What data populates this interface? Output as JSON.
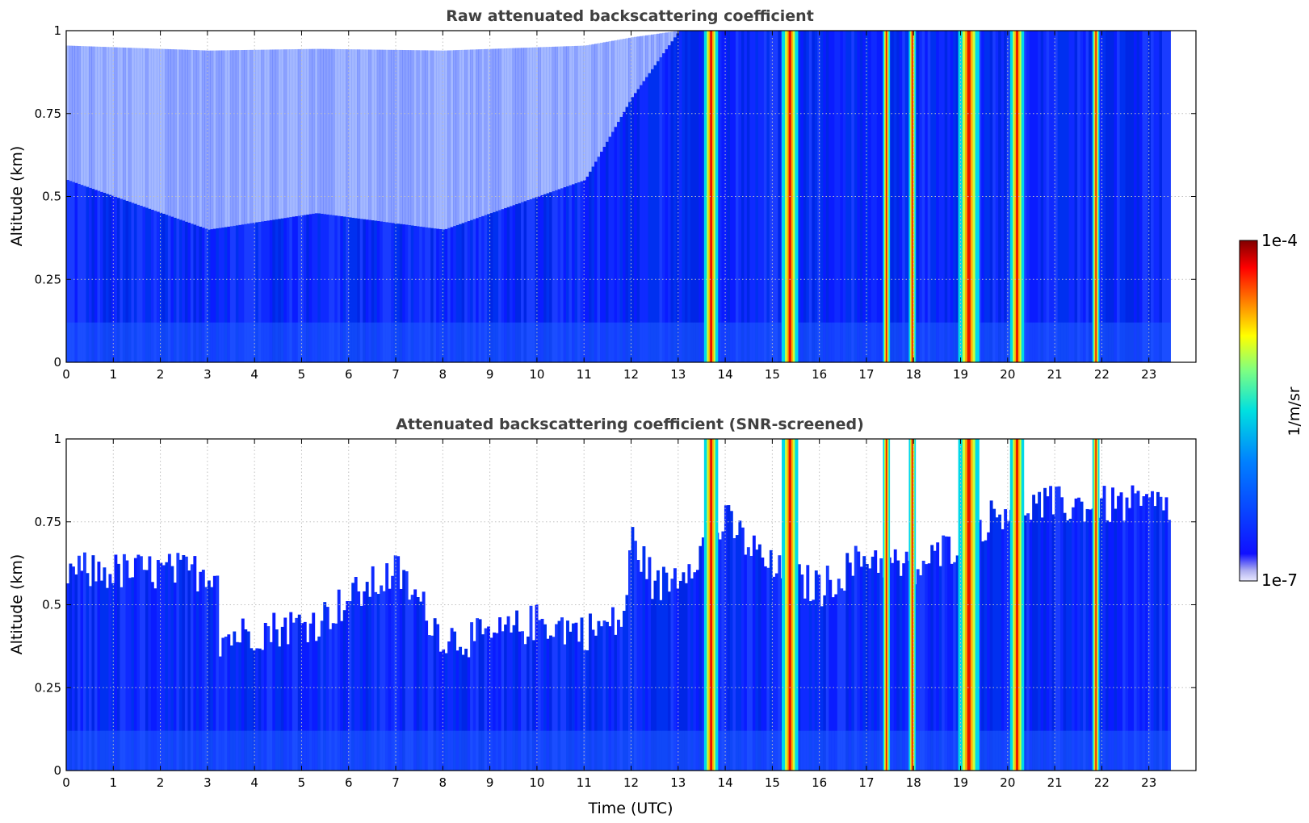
{
  "chart_data": [
    {
      "type": "heatmap",
      "title": "Raw attenuated backscattering coefficient",
      "xlabel": "",
      "ylabel": "Altitude (km)",
      "xlim": [
        0,
        24
      ],
      "ylim": [
        0,
        1
      ],
      "data_xmax": 23.45,
      "xticks": [
        0,
        1,
        2,
        3,
        4,
        5,
        6,
        7,
        8,
        9,
        10,
        11,
        12,
        13,
        14,
        15,
        16,
        17,
        18,
        19,
        20,
        21,
        22,
        23
      ],
      "yticks": [
        0,
        0.25,
        0.5,
        0.75,
        1
      ],
      "yticklabels": [
        "0",
        "0.25",
        "0.5",
        "0.75",
        "1"
      ],
      "grid": true,
      "screened": false,
      "colorscale": "log jet",
      "high_backscatter_bands": [
        {
          "x_start": 13.55,
          "x_end": 13.85
        },
        {
          "x_start": 15.2,
          "x_end": 15.55
        },
        {
          "x_start": 17.35,
          "x_end": 17.5
        },
        {
          "x_start": 17.9,
          "x_end": 18.05
        },
        {
          "x_start": 18.95,
          "x_end": 19.4
        },
        {
          "x_start": 20.05,
          "x_end": 20.35
        },
        {
          "x_start": 21.8,
          "x_end": 21.95
        }
      ],
      "signal_top_km": [
        [
          0,
          0.55
        ],
        [
          3,
          0.4
        ],
        [
          5.3,
          0.45
        ],
        [
          8,
          0.4
        ],
        [
          11,
          0.55
        ],
        [
          12,
          0.8
        ],
        [
          13,
          1.0
        ],
        [
          23.45,
          1.0
        ]
      ]
    },
    {
      "type": "heatmap",
      "title": "Attenuated backscattering coefficient (SNR-screened)",
      "xlabel": "Time (UTC)",
      "ylabel": "Altitude (km)",
      "xlim": [
        0,
        24
      ],
      "ylim": [
        0,
        1
      ],
      "data_xmax": 23.45,
      "xticks": [
        0,
        1,
        2,
        3,
        4,
        5,
        6,
        7,
        8,
        9,
        10,
        11,
        12,
        13,
        14,
        15,
        16,
        17,
        18,
        19,
        20,
        21,
        22,
        23
      ],
      "yticks": [
        0,
        0.25,
        0.5,
        0.75,
        1
      ],
      "yticklabels": [
        "0",
        "0.25",
        "0.5",
        "0.75",
        "1"
      ],
      "grid": true,
      "screened": true,
      "colorscale": "log jet",
      "high_backscatter_bands": [
        {
          "x_start": 13.55,
          "x_end": 13.85
        },
        {
          "x_start": 15.2,
          "x_end": 15.55
        },
        {
          "x_start": 17.35,
          "x_end": 17.5
        },
        {
          "x_start": 17.9,
          "x_end": 18.05
        },
        {
          "x_start": 18.95,
          "x_end": 19.4
        },
        {
          "x_start": 20.05,
          "x_end": 20.35
        },
        {
          "x_start": 21.8,
          "x_end": 21.95
        }
      ],
      "screened_top_km": [
        [
          0,
          0.6
        ],
        [
          3.2,
          0.6
        ],
        [
          3.2,
          0.4
        ],
        [
          5.3,
          0.45
        ],
        [
          6,
          0.52
        ],
        [
          7,
          0.6
        ],
        [
          8,
          0.4
        ],
        [
          9,
          0.4
        ],
        [
          10,
          0.45
        ],
        [
          11,
          0.42
        ],
        [
          11.8,
          0.45
        ],
        [
          12,
          0.7
        ],
        [
          12.5,
          0.55
        ],
        [
          13,
          0.6
        ],
        [
          14,
          0.75
        ],
        [
          15,
          0.6
        ],
        [
          16,
          0.55
        ],
        [
          17,
          0.65
        ],
        [
          18,
          0.6
        ],
        [
          19,
          0.7
        ],
        [
          20,
          0.8
        ],
        [
          21,
          0.8
        ],
        [
          22,
          0.8
        ],
        [
          23.45,
          0.8
        ]
      ]
    }
  ],
  "colorbar": {
    "label": "1/m/sr",
    "max_label": "1e-4",
    "min_label": "1e-7",
    "colormap": "jet"
  }
}
